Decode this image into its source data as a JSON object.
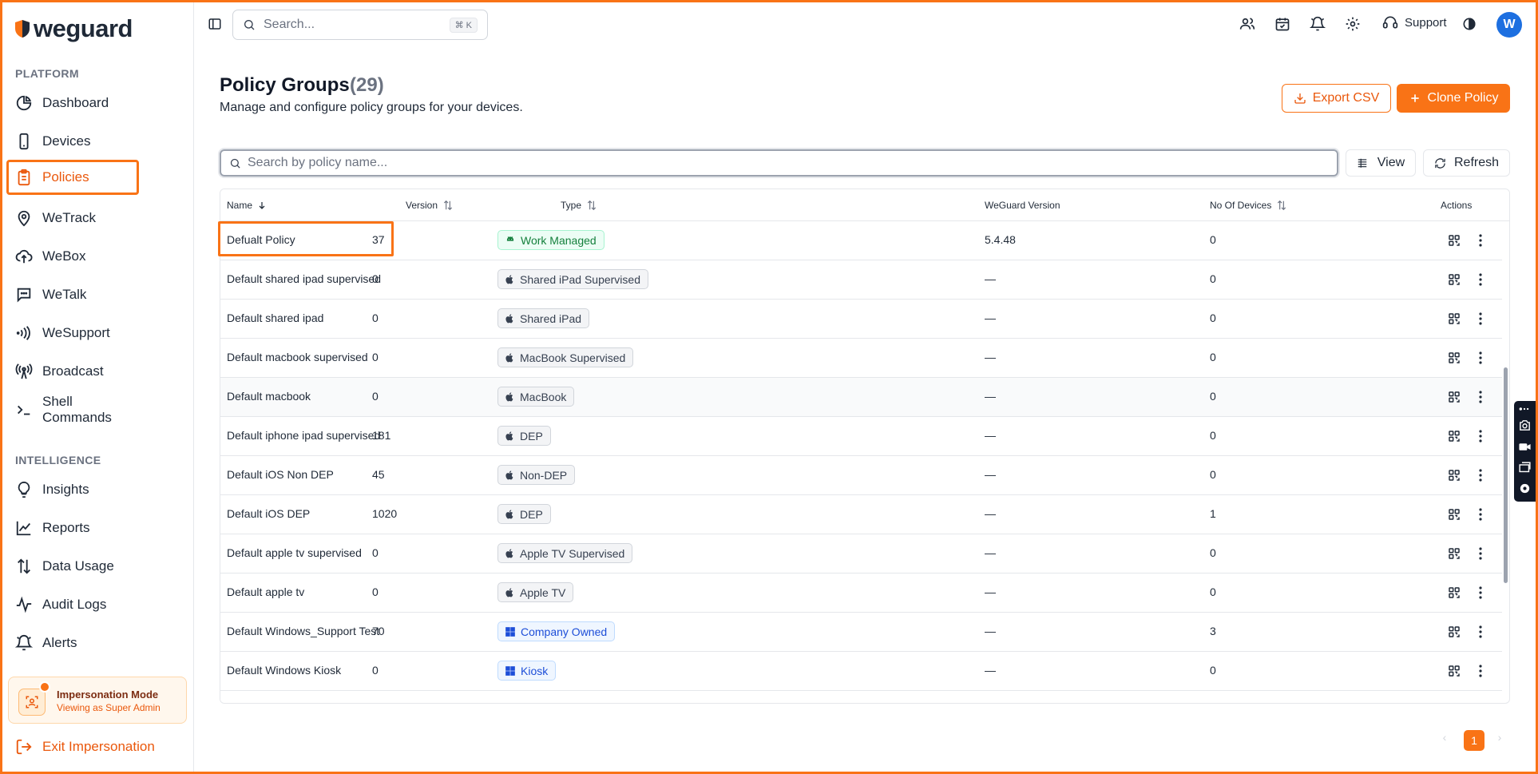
{
  "brand": {
    "name": "weguard"
  },
  "sidebar": {
    "platform_label": "PLATFORM",
    "platform_items": [
      {
        "label": "Dashboard",
        "icon": "pie-chart-icon"
      },
      {
        "label": "Devices",
        "icon": "smartphone-icon"
      },
      {
        "label": "Policies",
        "icon": "clipboard-icon",
        "active": true
      },
      {
        "label": "WeTrack",
        "icon": "map-pin-icon"
      },
      {
        "label": "WeBox",
        "icon": "cloud-upload-icon"
      },
      {
        "label": "WeTalk",
        "icon": "message-square-icon"
      },
      {
        "label": "WeSupport",
        "icon": "signal-waves-icon"
      },
      {
        "label": "Broadcast",
        "icon": "radio-tower-icon"
      },
      {
        "label": "Shell Commands",
        "icon": "terminal-icon"
      }
    ],
    "intelligence_label": "INTELLIGENCE",
    "intelligence_items": [
      {
        "label": "Insights",
        "icon": "lightbulb-icon"
      },
      {
        "label": "Reports",
        "icon": "line-chart-icon"
      },
      {
        "label": "Data Usage",
        "icon": "arrows-up-down-icon"
      },
      {
        "label": "Audit Logs",
        "icon": "activity-icon"
      },
      {
        "label": "Alerts",
        "icon": "bell-ring-icon"
      }
    ],
    "impersonation": {
      "title": "Impersonation Mode",
      "subtitle": "Viewing as Super Admin"
    },
    "exit_label": "Exit Impersonation"
  },
  "topbar": {
    "search_placeholder": "Search...",
    "search_shortcut": "⌘ K",
    "support_label": "Support",
    "avatar_initial": "W"
  },
  "page": {
    "title": "Policy Groups",
    "count": "(29)",
    "subtitle": "Manage and configure policy groups for your devices.",
    "export_label": "Export CSV",
    "clone_label": "Clone Policy",
    "search_placeholder": "Search by policy name...",
    "view_label": "View",
    "refresh_label": "Refresh"
  },
  "table": {
    "columns": [
      "Name",
      "Version",
      "Type",
      "WeGuard Version",
      "No Of Devices",
      "Actions"
    ],
    "rows": [
      {
        "name": "Defualt Policy",
        "version": "37",
        "type": "Work Managed",
        "type_style": "green",
        "type_icon": "android-icon",
        "weguard_version": "5.4.48",
        "devices": "0"
      },
      {
        "name": "Default shared ipad supervised",
        "version": "0",
        "type": "Shared iPad Supervised",
        "type_style": "gray",
        "type_icon": "apple-icon",
        "weguard_version": "—",
        "devices": "0"
      },
      {
        "name": "Default shared ipad",
        "version": "0",
        "type": "Shared iPad",
        "type_style": "gray",
        "type_icon": "apple-icon",
        "weguard_version": "—",
        "devices": "0"
      },
      {
        "name": "Default macbook supervised",
        "version": "0",
        "type": "MacBook Supervised",
        "type_style": "gray",
        "type_icon": "apple-icon",
        "weguard_version": "—",
        "devices": "0"
      },
      {
        "name": "Default macbook",
        "version": "0",
        "type": "MacBook",
        "type_style": "gray",
        "type_icon": "apple-icon",
        "weguard_version": "—",
        "devices": "0"
      },
      {
        "name": "Default iphone ipad supervised",
        "version": "181",
        "type": "DEP",
        "type_style": "gray",
        "type_icon": "apple-icon",
        "weguard_version": "—",
        "devices": "0"
      },
      {
        "name": "Default iOS Non DEP",
        "version": "45",
        "type": "Non-DEP",
        "type_style": "gray",
        "type_icon": "apple-icon",
        "weguard_version": "—",
        "devices": "0"
      },
      {
        "name": "Default iOS DEP",
        "version": "1020",
        "type": "DEP",
        "type_style": "gray",
        "type_icon": "apple-icon",
        "weguard_version": "—",
        "devices": "1"
      },
      {
        "name": "Default apple tv supervised",
        "version": "0",
        "type": "Apple TV Supervised",
        "type_style": "gray",
        "type_icon": "apple-icon",
        "weguard_version": "—",
        "devices": "0"
      },
      {
        "name": "Default apple tv",
        "version": "0",
        "type": "Apple TV",
        "type_style": "gray",
        "type_icon": "apple-icon",
        "weguard_version": "—",
        "devices": "0"
      },
      {
        "name": "Default Windows_Support Test",
        "version": "70",
        "type": "Company Owned",
        "type_style": "blue",
        "type_icon": "windows-icon",
        "weguard_version": "—",
        "devices": "3"
      },
      {
        "name": "Default Windows Kiosk",
        "version": "0",
        "type": "Kiosk",
        "type_style": "blue",
        "type_icon": "windows-icon",
        "weguard_version": "—",
        "devices": "0"
      }
    ]
  },
  "pagination": {
    "current": "1",
    "prev": "‹",
    "next": "›"
  },
  "colors": {
    "accent": "#f97316",
    "avatar": "#1d6fe0"
  }
}
